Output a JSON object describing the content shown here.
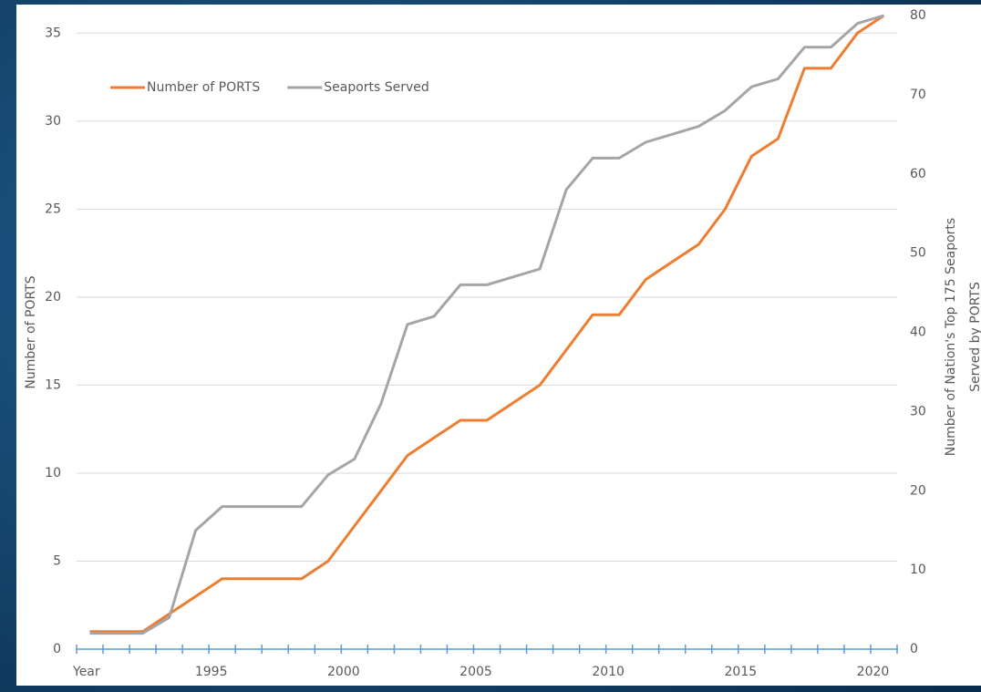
{
  "chart_data": {
    "type": "line",
    "categories": [
      "Year",
      null,
      null,
      null,
      null,
      "1995",
      null,
      null,
      null,
      null,
      "2000",
      null,
      null,
      null,
      null,
      "2005",
      null,
      null,
      null,
      null,
      "2010",
      null,
      null,
      null,
      null,
      "2015",
      null,
      null,
      null,
      null,
      "2020"
    ],
    "series": [
      {
        "name": "Number of PORTS",
        "color": "#ed7d31",
        "axis": "y",
        "values": [
          1,
          1,
          1,
          2,
          3,
          4,
          4,
          4,
          4,
          5,
          7,
          9,
          11,
          12,
          13,
          13,
          14,
          15,
          17,
          19,
          19,
          21,
          22,
          23,
          25,
          28,
          29,
          33,
          33,
          35,
          36
        ]
      },
      {
        "name": "Seaports Served",
        "color": "#a5a5a5",
        "axis": "y2",
        "values": [
          2,
          2,
          2,
          4,
          15,
          18,
          18,
          18,
          18,
          22,
          24,
          31,
          41,
          42,
          46,
          46,
          47,
          48,
          58,
          62,
          62,
          64,
          65,
          66,
          68,
          71,
          72,
          76,
          76,
          79,
          80
        ]
      }
    ],
    "ylabel": "Number of PORTS",
    "y2label": [
      "Number of Nation's Top 175 Seaports",
      "Served by PORTS"
    ],
    "ylim": [
      0,
      36
    ],
    "yticks": [
      0,
      5,
      10,
      15,
      20,
      25,
      30,
      35
    ],
    "y2lim": [
      0,
      80
    ],
    "y2ticks": [
      0,
      10,
      20,
      30,
      40,
      50,
      60,
      70,
      80
    ],
    "grid": true,
    "legend": "upper left"
  }
}
